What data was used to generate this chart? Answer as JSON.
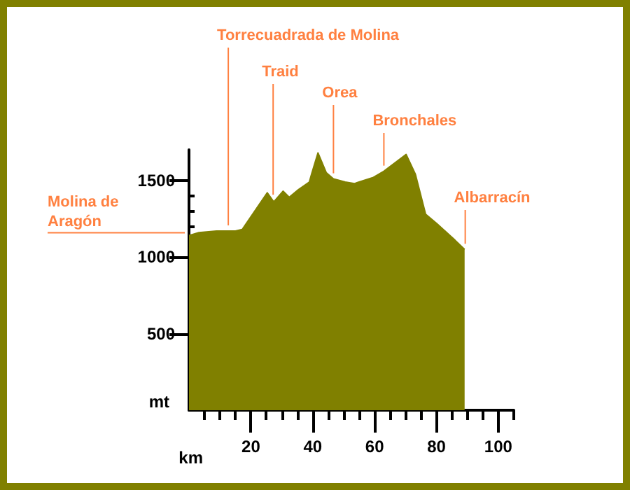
{
  "chart_data": {
    "type": "area",
    "xlabel": "km",
    "ylabel": "mt",
    "x": [
      0,
      3.2,
      8.9,
      15,
      17.2,
      25.3,
      27.4,
      30.4,
      32.4,
      35.4,
      38.9,
      39.6,
      41.7,
      44.4,
      46.7,
      50.5,
      53.5,
      59.6,
      63,
      70.2,
      73.2,
      76.5,
      80,
      86,
      89.1
    ],
    "series": [
      {
        "color": "#808000",
        "values": [
          1140,
          1160,
          1170,
          1170,
          1180,
          1420,
          1360,
          1430,
          1390,
          1440,
          1490,
          1540,
          1680,
          1550,
          1510,
          1490,
          1480,
          1520,
          1560,
          1670,
          1540,
          1280,
          1220,
          1110,
          1050
        ]
      }
    ],
    "xlim": [
      0,
      105
    ],
    "xticks": [
      {
        "value": 5,
        "label": null
      },
      {
        "value": 10,
        "label": null
      },
      {
        "value": 15,
        "label": null
      },
      20,
      {
        "value": 25,
        "label": null
      },
      {
        "value": 30,
        "label": null
      },
      {
        "value": 35,
        "label": null
      },
      40,
      {
        "value": 45,
        "label": null
      },
      {
        "value": 50,
        "label": null
      },
      {
        "value": 55,
        "label": null
      },
      60,
      {
        "value": 65,
        "label": null
      },
      {
        "value": 70,
        "label": null
      },
      {
        "value": 75,
        "label": null
      },
      80,
      {
        "value": 85,
        "label": null
      },
      {
        "value": 90,
        "label": null
      },
      {
        "value": 95,
        "label": null
      },
      100,
      {
        "value": 105,
        "label": null
      }
    ],
    "ylim": [
      0,
      1700
    ],
    "yticks": [
      {
        "value": 100,
        "label": null
      },
      {
        "value": 200,
        "label": null
      },
      {
        "value": 300,
        "label": null
      },
      {
        "value": 400,
        "label": null
      },
      500,
      {
        "value": 600,
        "label": null
      },
      {
        "value": 700,
        "label": null
      },
      {
        "value": 800,
        "label": null
      },
      {
        "value": 900,
        "label": null
      },
      1000,
      {
        "value": 1100,
        "label": null
      },
      {
        "value": 1200,
        "label": null
      },
      {
        "value": 1300,
        "label": null
      },
      {
        "value": 1400,
        "label": null
      },
      1500
    ],
    "annotations": [
      {
        "text": "Molina de Aragón",
        "x": 0,
        "y": 1140
      },
      {
        "text": "Torrecuadrada de Molina",
        "x": 12.7,
        "y": 1170
      },
      {
        "text": "Traid",
        "x": 27.2,
        "y": 1370
      },
      {
        "text": "Orea",
        "x": 46.7,
        "y": 1510
      },
      {
        "text": "Bronchales",
        "x": 63,
        "y": 1560
      },
      {
        "text": "Albarracín",
        "x": 89.3,
        "y": 1050
      }
    ],
    "grid": false
  }
}
